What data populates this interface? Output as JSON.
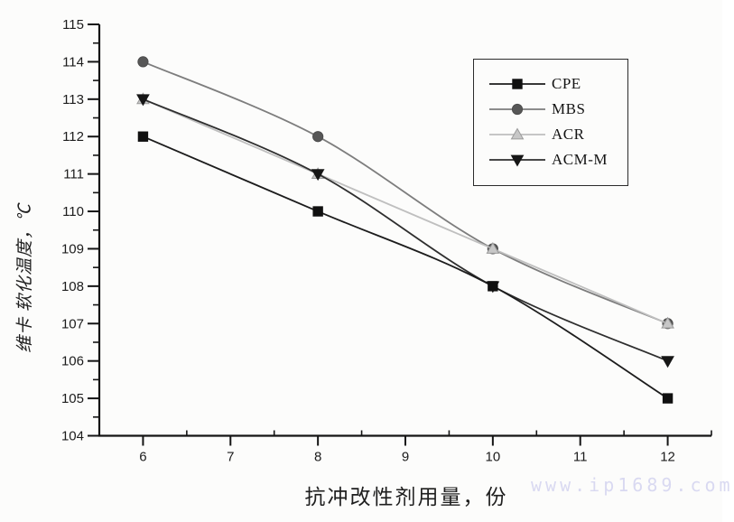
{
  "watermark": {
    "text": "www.ip1689.com",
    "color": "#d9d9f1"
  },
  "chart_data": {
    "type": "line",
    "title": "",
    "xlabel": "抗冲改性剂用量，份",
    "ylabel": "维卡 软化温度，℃",
    "x": [
      6,
      8,
      10,
      12
    ],
    "x_ticks": [
      6,
      7,
      8,
      9,
      10,
      11,
      12
    ],
    "y_ticks": [
      104,
      105,
      106,
      107,
      108,
      109,
      110,
      111,
      112,
      113,
      114,
      115
    ],
    "xlim": [
      5.5,
      12.5
    ],
    "ylim": [
      104,
      115
    ],
    "grid": false,
    "legend_position": "upper-right-inside",
    "axis_color": "#141414",
    "tick_label_color": "#1c1c1c",
    "series": [
      {
        "name": "CPE",
        "marker": "square",
        "line_color": "#1c1c1c",
        "marker_color": "#101010",
        "marker_edge": "#101010",
        "values": [
          112,
          110,
          108,
          105
        ]
      },
      {
        "name": "MBS",
        "marker": "circle",
        "line_color": "#7d7d7d",
        "marker_color": "#575757",
        "marker_edge": "#4c4c4c",
        "values": [
          114,
          112,
          109,
          107
        ]
      },
      {
        "name": "ACR",
        "marker": "triangle-up",
        "line_color": "#bfbfbf",
        "marker_color": "#c7c7c7",
        "marker_edge": "#9b9b9b",
        "values": [
          113,
          111,
          109,
          107
        ]
      },
      {
        "name": "ACM-M",
        "marker": "triangle-down",
        "line_color": "#2e2e2e",
        "marker_color": "#161616",
        "marker_edge": "#161616",
        "values": [
          113,
          111,
          108,
          106
        ]
      }
    ],
    "draw_order": [
      1,
      2,
      3,
      0
    ]
  }
}
